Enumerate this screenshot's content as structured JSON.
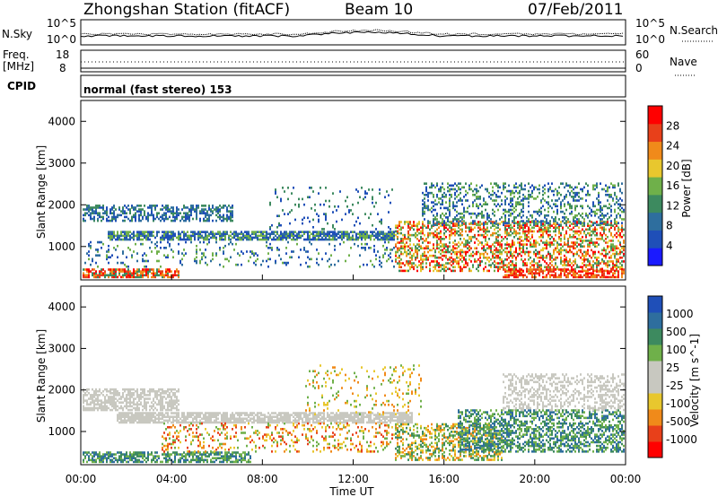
{
  "header": {
    "station": "Zhongshan Station (fitACF)",
    "beam": "Beam 10",
    "date": "07/Feb/2011"
  },
  "panels": {
    "nsky": {
      "label": "N.Sky",
      "right_label": "N.Search",
      "y_top": "10^5",
      "y_bottom": "10^0",
      "y_top_right": "10^5",
      "y_bottom_right": "10^0"
    },
    "freq": {
      "label": "Freq.",
      "unit": "[MHz]",
      "y_top": "18",
      "y_bottom": "8",
      "right_label": "Nave",
      "y_top_right": "60",
      "y_bottom_right": "0"
    },
    "cpid": {
      "label": "CPID",
      "text": "normal (fast stereo) 153"
    }
  },
  "colors": {
    "power_scale": [
      "#1a1aff",
      "#1f4fb8",
      "#2e6e9e",
      "#3d8a5f",
      "#6fb04a",
      "#e8c72e",
      "#f08a1a",
      "#e8401a",
      "#ff0000"
    ],
    "velocity_scale": [
      "#ff0000",
      "#e8401a",
      "#f08a1a",
      "#e8c72e",
      "#c8c8c0",
      "#c8c8c0",
      "#6fb04a",
      "#3d8a5f",
      "#2e6e9e",
      "#1f4fb8"
    ]
  },
  "chart_data": [
    {
      "type": "heatmap",
      "title": "",
      "xlabel": "Time UT",
      "ylabel": "Slant Range [km]",
      "xlim": [
        "00:00",
        "00:00"
      ],
      "ylim": [
        200,
        4500
      ],
      "x_ticks": [
        "00:00",
        "04:00",
        "08:00",
        "12:00",
        "16:00",
        "20:00",
        "00:00"
      ],
      "y_ticks": [
        1000,
        2000,
        3000,
        4000
      ],
      "colorbar": {
        "label": "Power [dB]",
        "ticks": [
          4,
          8,
          12,
          16,
          20,
          24,
          28
        ]
      }
    },
    {
      "type": "heatmap",
      "title": "",
      "xlabel": "Time UT",
      "ylabel": "Slant Range [km]",
      "xlim": [
        "00:00",
        "00:00"
      ],
      "ylim": [
        200,
        4500
      ],
      "x_ticks": [
        "00:00",
        "04:00",
        "08:00",
        "12:00",
        "16:00",
        "20:00",
        "00:00"
      ],
      "y_ticks": [
        1000,
        2000,
        3000,
        4000
      ],
      "colorbar": {
        "label": "Velocity [m s^-1]",
        "ticks": [
          1000,
          500,
          100,
          25,
          -25,
          -100,
          -500,
          -1000
        ]
      }
    }
  ]
}
